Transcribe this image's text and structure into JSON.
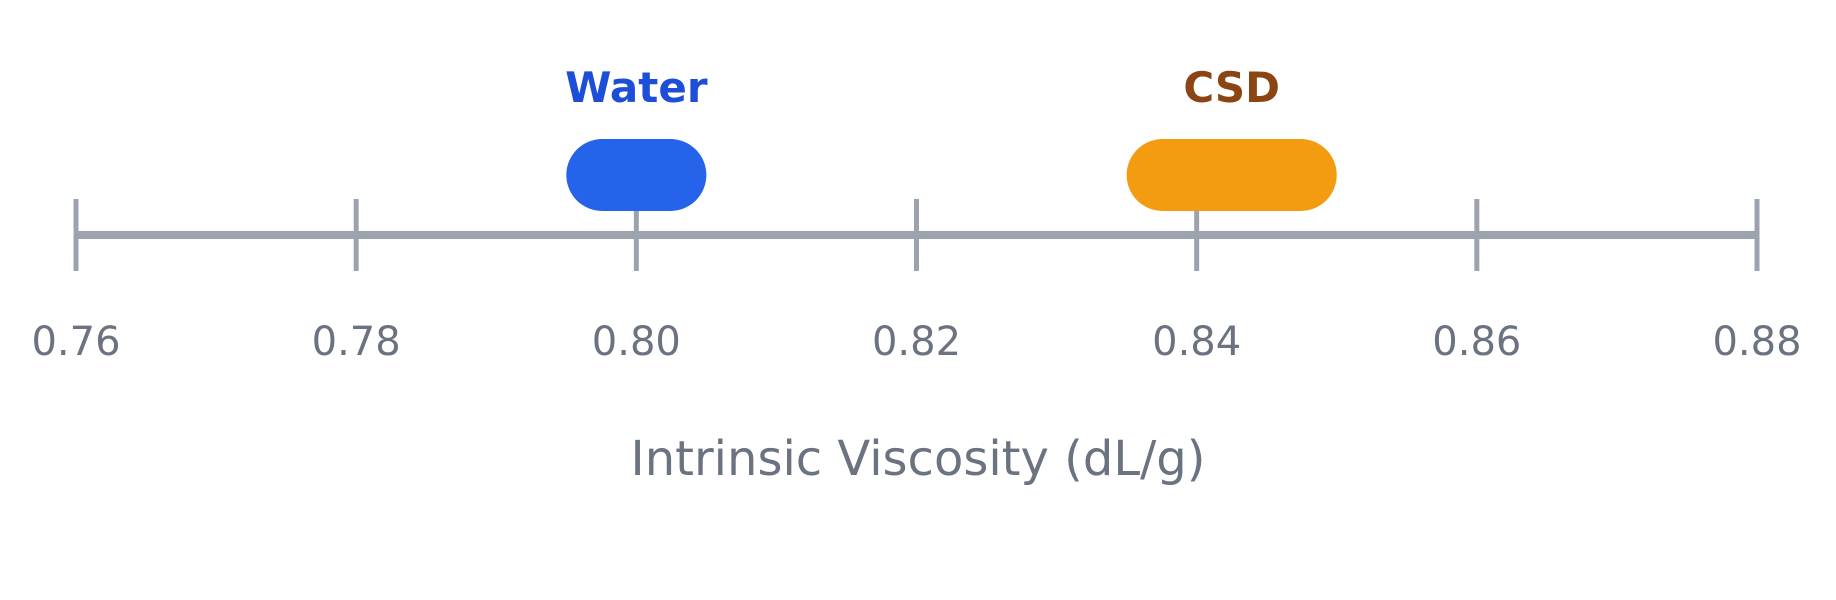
{
  "chart_data": {
    "type": "range",
    "xlabel": "Intrinsic Viscosity (dL/g)",
    "xlim": [
      0.76,
      0.88
    ],
    "ticks": [
      "0.76",
      "0.78",
      "0.80",
      "0.82",
      "0.84",
      "0.86",
      "0.88"
    ],
    "tick_values": [
      0.76,
      0.78,
      0.8,
      0.82,
      0.84,
      0.86,
      0.88
    ],
    "ranges": [
      {
        "label": "Water",
        "min": 0.795,
        "max": 0.805,
        "color": "#2563eb",
        "label_color": "#1d4ed8"
      },
      {
        "label": "CSD",
        "min": 0.835,
        "max": 0.85,
        "color": "#f39c12",
        "label_color": "#8b4513"
      }
    ],
    "grid": false
  },
  "colors": {
    "axis": "#9ca3af",
    "tick_text": "#6b7280"
  }
}
